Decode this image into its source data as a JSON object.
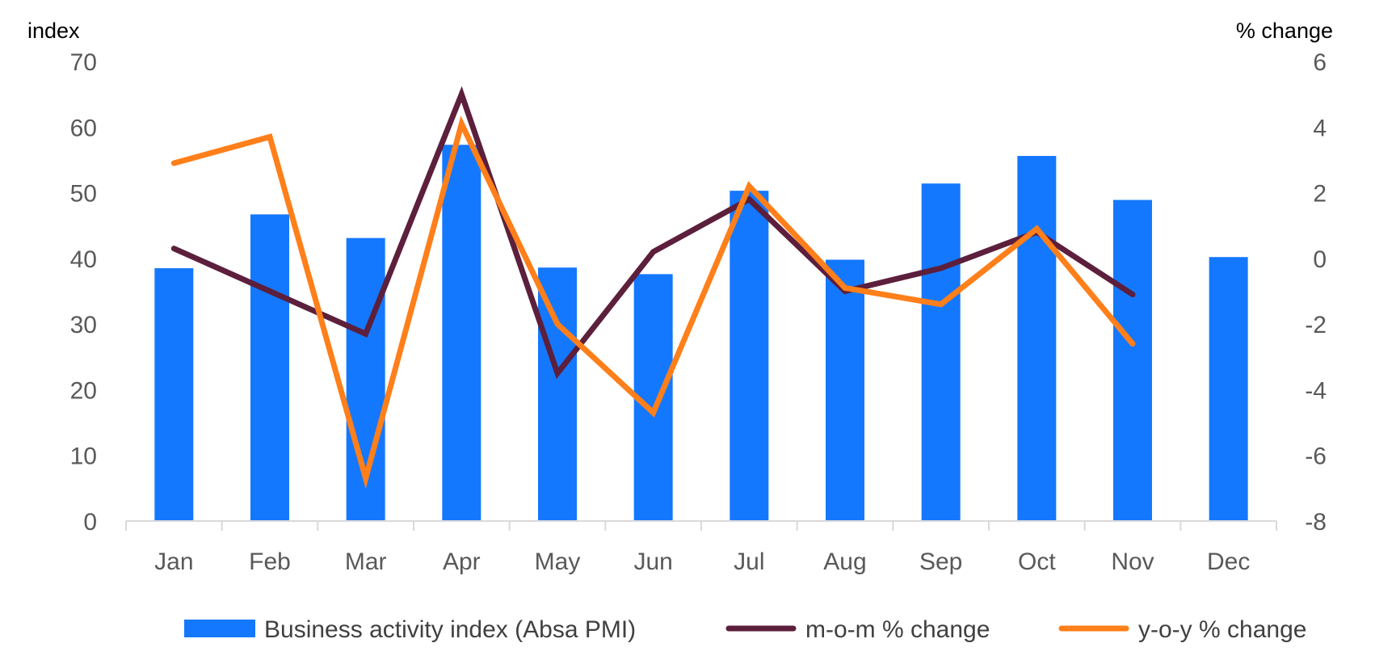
{
  "chart_data": {
    "type": "bar",
    "categories": [
      "Jan",
      "Feb",
      "Mar",
      "Apr",
      "May",
      "Jun",
      "Jul",
      "Aug",
      "Sep",
      "Oct",
      "Nov",
      "Dec"
    ],
    "left_axis": {
      "label": "index",
      "range": [
        0,
        70
      ],
      "ticks": [
        "70",
        "60",
        "50",
        "40",
        "30",
        "20",
        "10",
        "0"
      ]
    },
    "right_axis": {
      "label": "% change",
      "range": [
        -8,
        6
      ],
      "ticks": [
        "6",
        "4",
        "2",
        "0",
        "-2",
        "-4",
        "-6",
        "-8"
      ]
    },
    "series": [
      {
        "name": "Business activity index (Absa PMI)",
        "type": "bar",
        "axis": "left",
        "color": "#1478FF",
        "values": [
          38.5,
          46.7,
          43.1,
          57.3,
          38.6,
          37.6,
          50.3,
          39.8,
          51.4,
          55.6,
          48.9,
          40.2
        ]
      },
      {
        "name": "m-o-m % change",
        "type": "line",
        "axis": "right",
        "color": "#5C1F3C",
        "values": [
          0.3,
          -1.0,
          -2.3,
          5.0,
          -3.5,
          0.2,
          1.8,
          -1.0,
          -0.3,
          0.8,
          -1.1,
          null
        ]
      },
      {
        "name": "y-o-y % change",
        "type": "line",
        "axis": "right",
        "color": "#FF7F1A",
        "values": [
          2.9,
          3.7,
          -6.7,
          4.1,
          -2.0,
          -4.7,
          2.2,
          -0.9,
          -1.4,
          0.9,
          -2.6,
          null
        ]
      }
    ],
    "legend": "bottom",
    "grid": false
  }
}
